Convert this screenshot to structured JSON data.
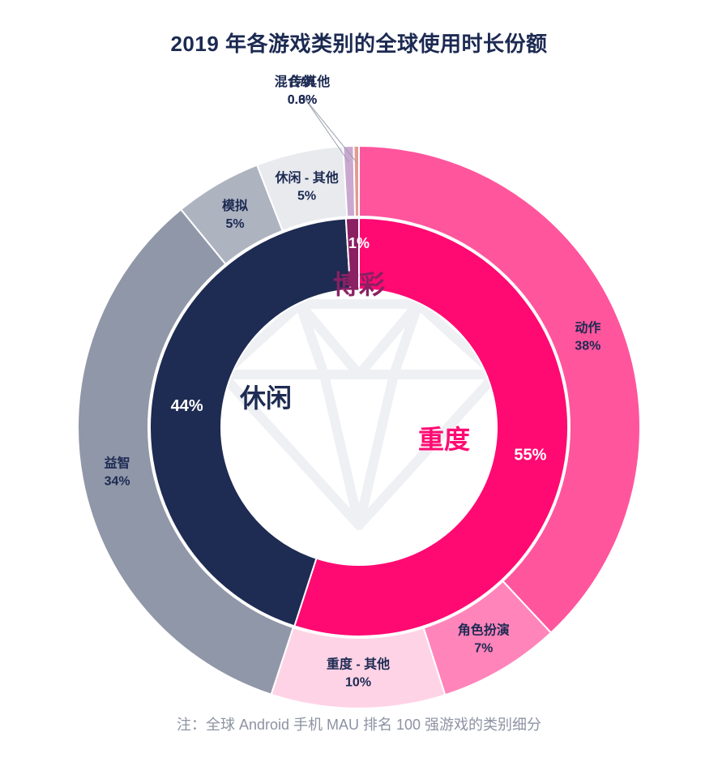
{
  "title": "2019 年各游戏类别的全球使用时长份额",
  "footnote": "注：全球 Android 手机 MAU 排名 100 强游戏的类别细分",
  "colors": {
    "casual": "#1e2b52",
    "hardcore": "#ff0a72",
    "casino": "#8b2063",
    "background_mark": "#eef0f4"
  },
  "chart_data": {
    "type": "pie",
    "inner_ring": [
      {
        "name": "重度",
        "value": 55,
        "label": "55%",
        "color": "#ff0a72"
      },
      {
        "name": "休闲",
        "value": 44,
        "label": "44%",
        "color": "#1e2b52"
      },
      {
        "name": "博彩",
        "value": 1,
        "label": "1%",
        "color": "#8b2063"
      }
    ],
    "outer_ring": [
      {
        "name": "动作",
        "value": 38,
        "label": "38%",
        "group": "重度",
        "color": "#ff559d"
      },
      {
        "name": "角色扮演",
        "value": 7,
        "label": "7%",
        "group": "重度",
        "color": "#ff84ba"
      },
      {
        "name": "重度 - 其他",
        "value": 10,
        "label": "10%",
        "group": "重度",
        "color": "#ffd3e6"
      },
      {
        "name": "益智",
        "value": 34,
        "label": "34%",
        "group": "休闲",
        "color": "#9097a8"
      },
      {
        "name": "模拟",
        "value": 5,
        "label": "5%",
        "group": "休闲",
        "color": "#aeb3c0"
      },
      {
        "name": "休闲 - 其他",
        "value": 5,
        "label": "5%",
        "group": "休闲",
        "color": "#e8eaee"
      },
      {
        "name": "传统",
        "value": 0.6,
        "label": "0.6%",
        "group": "博彩",
        "color": "#caa8cf"
      },
      {
        "name": "混合/其他",
        "value": 0.3,
        "label": "0.3%",
        "group": "博彩",
        "color": "#e39a8f"
      }
    ],
    "center_labels": [
      {
        "name": "博彩",
        "color": "#8b2063"
      },
      {
        "name": "休闲",
        "color": "#1e2b52"
      },
      {
        "name": "重度",
        "color": "#ff0a72"
      }
    ]
  }
}
